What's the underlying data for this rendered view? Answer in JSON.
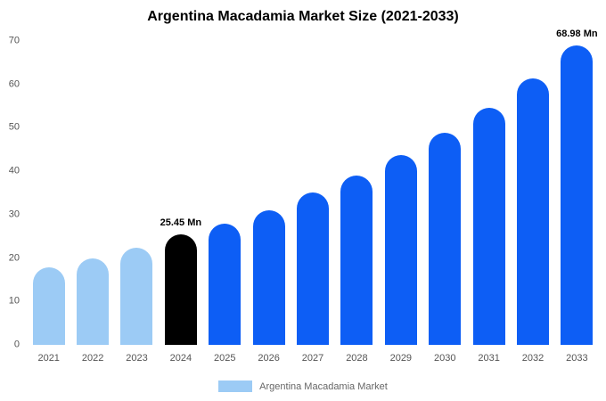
{
  "chart_data": {
    "type": "bar",
    "title": "Argentina Macadamia Market Size (2021-2033)",
    "categories": [
      "2021",
      "2022",
      "2023",
      "2024",
      "2025",
      "2026",
      "2027",
      "2028",
      "2029",
      "2030",
      "2031",
      "2032",
      "2033"
    ],
    "values": [
      17.8,
      20.0,
      22.3,
      25.45,
      27.9,
      31.1,
      35.2,
      39.1,
      43.7,
      48.8,
      54.7,
      61.3,
      68.98
    ],
    "bar_colors": [
      "#9CCBF5",
      "#9CCBF5",
      "#9CCBF5",
      "#000000",
      "#0D5EF5",
      "#0D5EF5",
      "#0D5EF5",
      "#0D5EF5",
      "#0D5EF5",
      "#0D5EF5",
      "#0D5EF5",
      "#0D5EF5",
      "#0D5EF5"
    ],
    "annotations": [
      {
        "index": 3,
        "text": "25.45 Mn"
      },
      {
        "index": 12,
        "text": "68.98 Mn"
      }
    ],
    "ylim": [
      0,
      70
    ],
    "y_ticks": [
      0,
      10,
      20,
      30,
      40,
      50,
      60,
      70
    ],
    "xlabel": "",
    "ylabel": "",
    "grid": false,
    "legend": {
      "position": "bottom",
      "items": [
        {
          "label": "Argentina Macadamia Market",
          "color": "#9CCBF5"
        }
      ]
    }
  }
}
